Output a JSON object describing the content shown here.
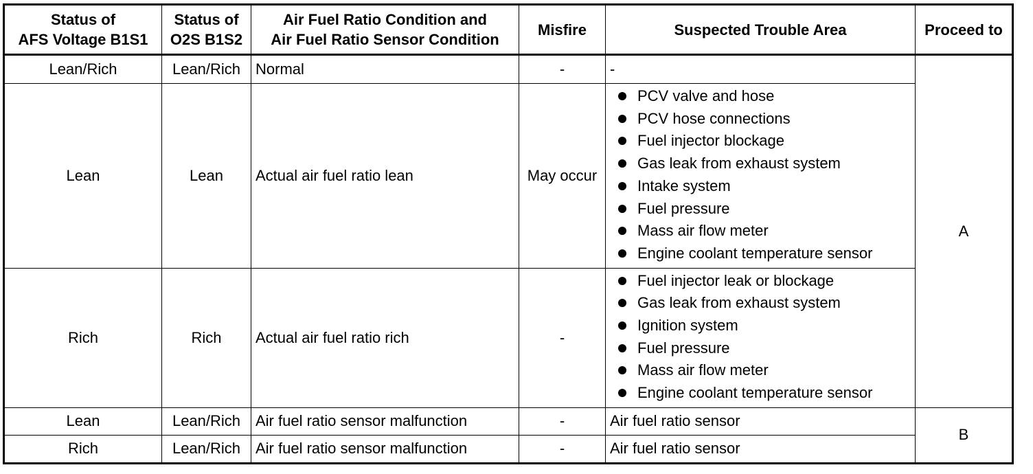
{
  "headers": {
    "col1": [
      "Status of",
      "AFS Voltage B1S1"
    ],
    "col2": [
      "Status of",
      "O2S B1S2"
    ],
    "col3": [
      "Air Fuel Ratio Condition and",
      "Air Fuel Ratio Sensor Condition"
    ],
    "col4": "Misfire",
    "col5": "Suspected Trouble Area",
    "col6": "Proceed to"
  },
  "rows": [
    {
      "afs": "Lean/Rich",
      "o2s": "Lean/Rich",
      "condition": "Normal",
      "misfire": "-",
      "trouble": "-"
    },
    {
      "afs": "Lean",
      "o2s": "Lean",
      "condition": "Actual air fuel ratio lean",
      "misfire": "May occur",
      "trouble_list": [
        "PCV valve and hose",
        "PCV hose connections",
        "Fuel injector blockage",
        "Gas leak from exhaust system",
        "Intake system",
        "Fuel pressure",
        "Mass air flow meter",
        "Engine coolant temperature sensor"
      ]
    },
    {
      "afs": "Rich",
      "o2s": "Rich",
      "condition": "Actual air fuel ratio rich",
      "misfire": "-",
      "trouble_list": [
        "Fuel injector leak or blockage",
        "Gas leak from exhaust system",
        "Ignition system",
        "Fuel pressure",
        "Mass air flow meter",
        "Engine coolant temperature sensor"
      ]
    },
    {
      "afs": "Lean",
      "o2s": "Lean/Rich",
      "condition": "Air fuel ratio sensor malfunction",
      "misfire": "-",
      "trouble": "Air fuel ratio sensor"
    },
    {
      "afs": "Rich",
      "o2s": "Lean/Rich",
      "condition": "Air fuel ratio sensor malfunction",
      "misfire": "-",
      "trouble": "Air fuel ratio sensor"
    }
  ],
  "proceed": {
    "group_a": "A",
    "group_b": "B"
  }
}
